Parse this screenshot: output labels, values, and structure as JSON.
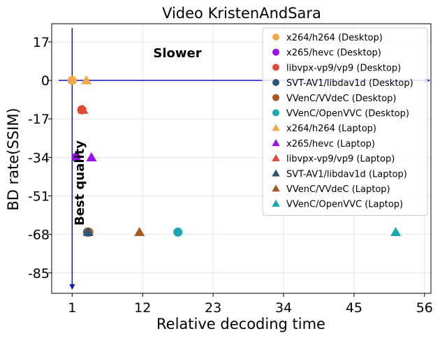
{
  "chart_data": {
    "type": "scatter",
    "title": "Video KristenAndSara",
    "xlabel": "Relative decoding time",
    "ylabel": "BD rate(SSIM)",
    "xlim": [
      -2.2,
      57.0
    ],
    "ylim": [
      -94.0,
      25.0
    ],
    "xticks": [
      1,
      12,
      23,
      34,
      45,
      56
    ],
    "yticks": [
      17,
      0,
      -17,
      -34,
      -51,
      -68,
      -85
    ],
    "grid": true,
    "legend_position": "top-right",
    "annotations": [
      {
        "text": "Slower",
        "x": 14,
        "y": 10
      },
      {
        "text": "Best quality",
        "x": -1.4,
        "y": -47
      }
    ],
    "reference_lines": {
      "horizontal_y": 0,
      "vertical_x": 1,
      "color": "#1010c0"
    },
    "series": [
      {
        "name": "x264/h264 (Desktop)",
        "marker": "circle",
        "color": "#f0a848",
        "points": [
          [
            1.0,
            0.0
          ]
        ]
      },
      {
        "name": "x265/hevc (Desktop)",
        "marker": "circle",
        "color": "#9b0ff0",
        "points": [
          [
            1.6,
            -34.0
          ]
        ]
      },
      {
        "name": "libvpx-vp9/vp9 (Desktop)",
        "marker": "circle",
        "color": "#e04838",
        "points": [
          [
            2.5,
            -13.0
          ]
        ]
      },
      {
        "name": "SVT-AV1/libdav1d (Desktop)",
        "marker": "circle",
        "color": "#2c5478",
        "points": [
          [
            3.4,
            -67.0
          ]
        ]
      },
      {
        "name": "VVenC/VVdeC (Desktop)",
        "marker": "circle",
        "color": "#a85820",
        "points": [
          [
            3.6,
            -67.0
          ]
        ]
      },
      {
        "name": "VVenC/OpenVVC (Desktop)",
        "marker": "circle",
        "color": "#18a8b0",
        "points": [
          [
            17.5,
            -67.0
          ]
        ]
      },
      {
        "name": "x264/h264 (Laptop)",
        "marker": "triangle",
        "color": "#f0a848",
        "points": [
          [
            3.2,
            0.0
          ]
        ]
      },
      {
        "name": "x265/hevc (Laptop)",
        "marker": "triangle",
        "color": "#9b0ff0",
        "points": [
          [
            4.0,
            -34.0
          ]
        ]
      },
      {
        "name": "libvpx-vp9/vp9 (Laptop)",
        "marker": "triangle",
        "color": "#e04838",
        "points": [
          [
            2.7,
            -13.0
          ]
        ]
      },
      {
        "name": "SVT-AV1/libdav1d (Laptop)",
        "marker": "triangle",
        "color": "#2c5478",
        "points": [
          [
            3.5,
            -67.0
          ]
        ]
      },
      {
        "name": "VVenC/VVdeC (Laptop)",
        "marker": "triangle",
        "color": "#a85820",
        "points": [
          [
            11.5,
            -67.0
          ]
        ]
      },
      {
        "name": "VVenC/OpenVVC (Laptop)",
        "marker": "triangle",
        "color": "#18a8b0",
        "points": [
          [
            51.5,
            -67.0
          ]
        ]
      }
    ]
  }
}
